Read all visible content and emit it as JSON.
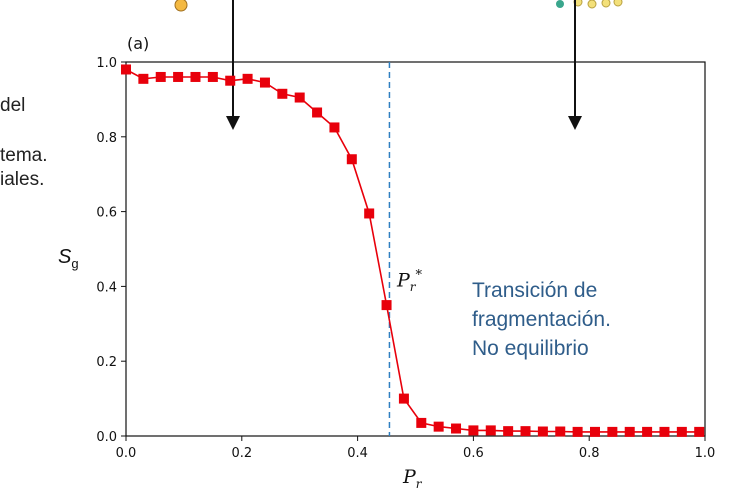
{
  "left_text": [
    "del",
    "tema.",
    "iales."
  ],
  "panel_label": "(a)",
  "ylabel": {
    "symbol": "S",
    "subscript": "g"
  },
  "xlabel": {
    "symbol": "P",
    "subscript": "r"
  },
  "critical_label": {
    "symbol": "P",
    "subscript": "r",
    "superscript": "*"
  },
  "annotation": [
    "Transición de",
    "fragmentación.",
    "No equilibrio"
  ],
  "colors": {
    "series": "#e8000b",
    "critical_line": "#2f7fc1",
    "annotation": "#2f5d8a",
    "decor_orange": "#f4b942",
    "decor_teal": "#3aa68d",
    "decor_yellow": "#f3e07a"
  },
  "chart_data": {
    "type": "line",
    "xlim": [
      0.0,
      1.0
    ],
    "ylim": [
      0.0,
      1.0
    ],
    "xticks": [
      "0.0",
      "0.2",
      "0.4",
      "0.6",
      "0.8",
      "1.0"
    ],
    "yticks": [
      "0.0",
      "0.2",
      "0.4",
      "0.6",
      "0.8",
      "1.0"
    ],
    "grid": false,
    "critical_x": 0.455,
    "series": [
      {
        "marker": "square",
        "x": [
          0.0,
          0.03,
          0.06,
          0.09,
          0.12,
          0.15,
          0.18,
          0.21,
          0.24,
          0.27,
          0.3,
          0.33,
          0.36,
          0.39,
          0.42,
          0.45,
          0.48,
          0.51,
          0.54,
          0.57,
          0.6,
          0.63,
          0.66,
          0.69,
          0.72,
          0.75,
          0.78,
          0.81,
          0.84,
          0.87,
          0.9,
          0.93,
          0.96,
          0.99
        ],
        "y": [
          0.98,
          0.955,
          0.96,
          0.96,
          0.96,
          0.96,
          0.95,
          0.955,
          0.945,
          0.915,
          0.905,
          0.865,
          0.825,
          0.74,
          0.595,
          0.35,
          0.1,
          0.035,
          0.025,
          0.02,
          0.015,
          0.015,
          0.013,
          0.013,
          0.012,
          0.012,
          0.011,
          0.011,
          0.011,
          0.011,
          0.011,
          0.011,
          0.011,
          0.011
        ]
      }
    ]
  }
}
